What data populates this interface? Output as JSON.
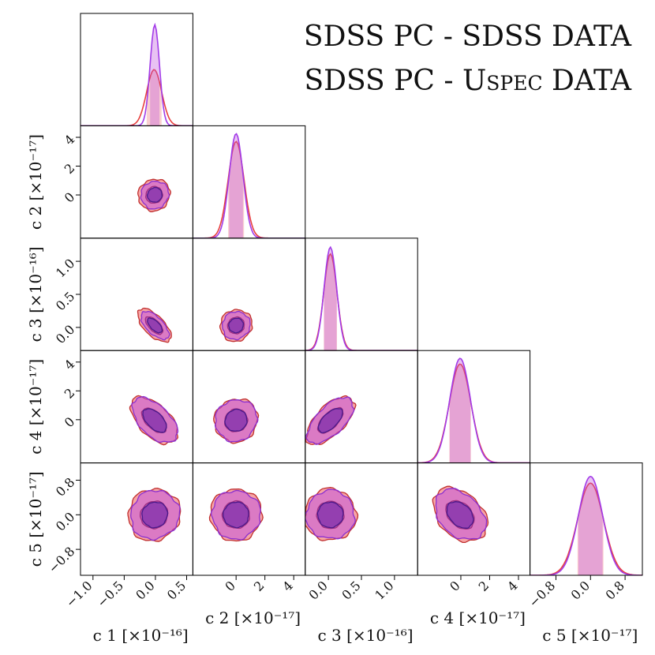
{
  "chart_data": {
    "type": "corner",
    "legend": {
      "placement": "top-right",
      "entries": [
        {
          "label": "SDSS PC - SDSS DATA",
          "color": "#e8413f"
        },
        {
          "label_prefix": "SDSS PC - ",
          "label_smallcaps": "Uspec",
          "label_suffix": " DATA",
          "color": "#a23be8"
        }
      ]
    },
    "colors": {
      "sdss": "#e8413f",
      "uspec": "#a23be8",
      "overlap": "#cc55c8"
    },
    "variables": [
      {
        "name": "c 1",
        "unit": "[×10⁻¹⁶]",
        "label": "c 1 [×10⁻¹⁶]",
        "range": [
          -1.2,
          0.6
        ],
        "ticks": [
          -1.0,
          -0.5,
          0.0,
          0.5
        ],
        "tick_labels": [
          "−1.0",
          "−0.5",
          "0.0",
          "0.5"
        ]
      },
      {
        "name": "c 2",
        "unit": "[×10⁻¹⁷]",
        "label": "c 2 [×10⁻¹⁷]",
        "range": [
          -3.0,
          4.8
        ],
        "ticks": [
          0,
          2,
          4
        ],
        "tick_labels": [
          "0",
          "2",
          "4"
        ]
      },
      {
        "name": "c 3",
        "unit": "[×10⁻¹⁶]",
        "label": "c 3 [×10⁻¹⁶]",
        "range": [
          -0.35,
          1.35
        ],
        "ticks": [
          0.0,
          0.5,
          1.0
        ],
        "tick_labels": [
          "0.0",
          "0.5",
          "1.0"
        ]
      },
      {
        "name": "c 4",
        "unit": "[×10⁻¹⁷]",
        "label": "c 4 [×10⁻¹⁷]",
        "range": [
          -3.0,
          4.8
        ],
        "ticks": [
          0,
          2,
          4
        ],
        "tick_labels": [
          "0",
          "2",
          "4"
        ]
      },
      {
        "name": "c 5",
        "unit": "[×10⁻¹⁷]",
        "label": "c 5 [×10⁻¹⁷]",
        "range": [
          -1.4,
          1.2
        ],
        "ticks": [
          -0.8,
          0.0,
          0.8
        ],
        "tick_labels": [
          "−0.8",
          "0.0",
          "0.8"
        ]
      }
    ],
    "series": [
      {
        "name": "SDSS PC - SDSS DATA",
        "key": "sdss",
        "mean": [
          -0.02,
          0.0,
          0.03,
          -0.05,
          0.0
        ],
        "sd": [
          0.12,
          0.55,
          0.1,
          0.75,
          0.3
        ],
        "peak": [
          0.5,
          0.86,
          0.86,
          0.88,
          0.82
        ]
      },
      {
        "name": "SDSS PC - Uspec DATA",
        "key": "uspec",
        "mean": [
          -0.01,
          0.0,
          0.03,
          -0.05,
          0.0
        ],
        "sd": [
          0.075,
          0.48,
          0.095,
          0.72,
          0.28
        ],
        "peak": [
          0.9,
          0.93,
          0.92,
          0.93,
          0.88
        ]
      }
    ],
    "correlations": [
      {
        "pair": [
          "c 2",
          "c 1"
        ],
        "rho": 0.05
      },
      {
        "pair": [
          "c 3",
          "c 1"
        ],
        "rho": -0.6
      },
      {
        "pair": [
          "c 3",
          "c 2"
        ],
        "rho": 0.05
      },
      {
        "pair": [
          "c 4",
          "c 1"
        ],
        "rho": -0.5
      },
      {
        "pair": [
          "c 4",
          "c 2"
        ],
        "rho": 0.05
      },
      {
        "pair": [
          "c 4",
          "c 3"
        ],
        "rho": 0.6
      },
      {
        "pair": [
          "c 5",
          "c 1"
        ],
        "rho": 0.05
      },
      {
        "pair": [
          "c 5",
          "c 2"
        ],
        "rho": 0.0
      },
      {
        "pair": [
          "c 5",
          "c 3"
        ],
        "rho": 0.0
      },
      {
        "pair": [
          "c 5",
          "c 4"
        ],
        "rho": -0.3
      }
    ]
  }
}
